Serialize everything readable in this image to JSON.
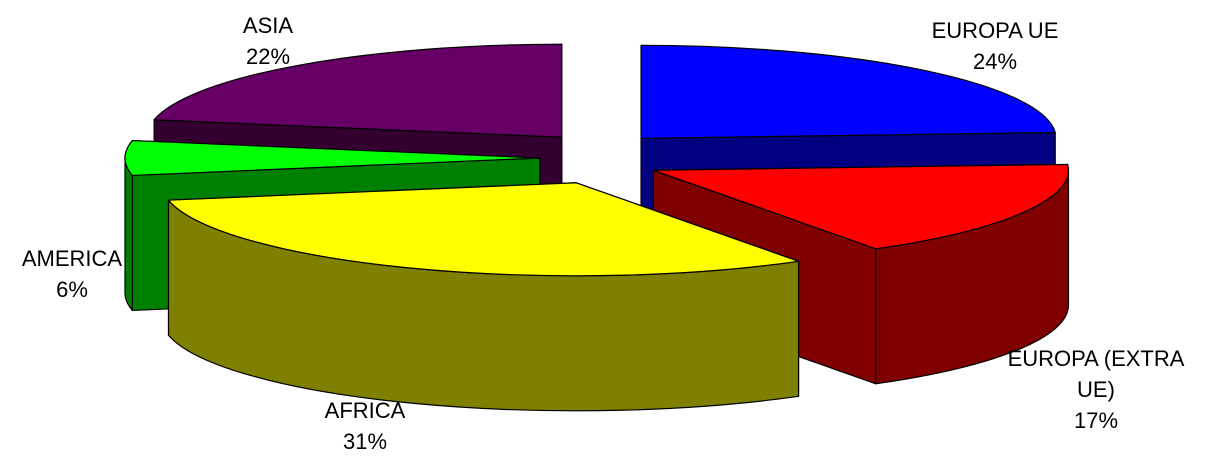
{
  "chart_data": {
    "type": "pie",
    "style": "3d-exploded",
    "slices": [
      {
        "label_lines": [
          "EUROPA UE"
        ],
        "pct_label": "24%",
        "value": 24,
        "color": "#0000FF",
        "side_color": "#000080"
      },
      {
        "label_lines": [
          "EUROPA (EXTRA",
          "UE)"
        ],
        "pct_label": "17%",
        "value": 17,
        "color": "#FF0000",
        "side_color": "#800000"
      },
      {
        "label_lines": [
          "AFRICA"
        ],
        "pct_label": "31%",
        "value": 31,
        "color": "#FFFF00",
        "side_color": "#808000"
      },
      {
        "label_lines": [
          "AMERICA"
        ],
        "pct_label": "6%",
        "value": 6,
        "color": "#00FF00",
        "side_color": "#008000"
      },
      {
        "label_lines": [
          "ASIA"
        ],
        "pct_label": "22%",
        "value": 22,
        "color": "#660066",
        "side_color": "#33002F"
      }
    ],
    "legend": "none"
  }
}
